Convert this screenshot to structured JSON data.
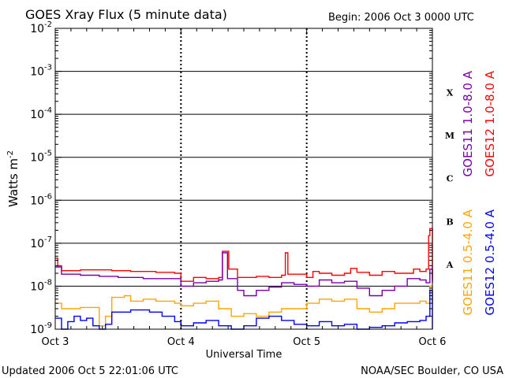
{
  "chart_data": {
    "type": "line",
    "title": "GOES Xray Flux (5 minute data)",
    "begin_label": "Begin:  2006 Oct 3 0000 UTC",
    "xlabel": "Universal Time",
    "ylabel_base": "Watts m",
    "ylabel_exp": "-2",
    "yscale": "log",
    "ylim": [
      1e-09,
      0.01
    ],
    "xlim": [
      0,
      3
    ],
    "grid": true,
    "x_ticks": [
      {
        "value": 0,
        "label": "Oct 3"
      },
      {
        "value": 1,
        "label": "Oct 4"
      },
      {
        "value": 2,
        "label": "Oct 5"
      },
      {
        "value": 3,
        "label": "Oct 6"
      }
    ],
    "y_ticks": [
      {
        "value": 0.01,
        "base": "10",
        "exp": "-2"
      },
      {
        "value": 0.001,
        "base": "10",
        "exp": "-3"
      },
      {
        "value": 0.0001,
        "base": "10",
        "exp": "-4"
      },
      {
        "value": 1e-05,
        "base": "10",
        "exp": "-5"
      },
      {
        "value": 1e-06,
        "base": "10",
        "exp": "-6"
      },
      {
        "value": 1e-07,
        "base": "10",
        "exp": "-7"
      },
      {
        "value": 1e-08,
        "base": "10",
        "exp": "-8"
      },
      {
        "value": 1e-09,
        "base": "10",
        "exp": "-9"
      }
    ],
    "flare_classes": [
      {
        "label": "X",
        "y": 0.00032
      },
      {
        "label": "M",
        "y": 3.2e-05
      },
      {
        "label": "C",
        "y": 3.2e-06
      },
      {
        "label": "B",
        "y": 3.2e-07
      },
      {
        "label": "A",
        "y": 3.2e-08
      }
    ],
    "series": [
      {
        "name": "GOES12 1.0-8.0 A",
        "color": "#ff0000",
        "points": [
          [
            0.0,
            4.5e-08
          ],
          [
            0.02,
            3e-08
          ],
          [
            0.05,
            2.3e-08
          ],
          [
            0.2,
            2.4e-08
          ],
          [
            0.45,
            2.3e-08
          ],
          [
            0.6,
            2.2e-08
          ],
          [
            0.8,
            2.1e-08
          ],
          [
            0.95,
            2e-08
          ],
          [
            1.0,
            1.3e-08
          ],
          [
            1.1,
            1.6e-08
          ],
          [
            1.2,
            1.5e-08
          ],
          [
            1.3,
            1.6e-08
          ],
          [
            1.33,
            6.5e-08
          ],
          [
            1.38,
            2.5e-08
          ],
          [
            1.45,
            1.6e-08
          ],
          [
            1.6,
            1.7e-08
          ],
          [
            1.7,
            1.6e-08
          ],
          [
            1.8,
            1.8e-08
          ],
          [
            1.83,
            6e-08
          ],
          [
            1.85,
            1.9e-08
          ],
          [
            2.0,
            1.6e-08
          ],
          [
            2.05,
            2.2e-08
          ],
          [
            2.1,
            2e-08
          ],
          [
            2.2,
            1.8e-08
          ],
          [
            2.3,
            2e-08
          ],
          [
            2.35,
            2.6e-08
          ],
          [
            2.4,
            2.1e-08
          ],
          [
            2.5,
            1.8e-08
          ],
          [
            2.6,
            2.2e-08
          ],
          [
            2.7,
            2e-08
          ],
          [
            2.8,
            2e-08
          ],
          [
            2.85,
            2.5e-08
          ],
          [
            2.9,
            2.2e-08
          ],
          [
            2.95,
            2.5e-08
          ],
          [
            2.97,
            1.5e-07
          ],
          [
            2.98,
            2.2e-07
          ],
          [
            3.0,
            1.4e-08
          ]
        ]
      },
      {
        "name": "GOES11 1.0-8.0 A",
        "color": "#7700aa",
        "points": [
          [
            0.0,
            2.8e-08
          ],
          [
            0.05,
            1.9e-08
          ],
          [
            0.2,
            1.8e-08
          ],
          [
            0.35,
            1.7e-08
          ],
          [
            0.5,
            1.6e-08
          ],
          [
            0.7,
            1.5e-08
          ],
          [
            0.95,
            1.5e-08
          ],
          [
            1.0,
            1e-08
          ],
          [
            1.1,
            1.2e-08
          ],
          [
            1.2,
            1.3e-08
          ],
          [
            1.3,
            1.4e-08
          ],
          [
            1.33,
            6e-08
          ],
          [
            1.37,
            1.5e-08
          ],
          [
            1.45,
            8e-09
          ],
          [
            1.5,
            6e-09
          ],
          [
            1.6,
            8e-09
          ],
          [
            1.7,
            9.5e-09
          ],
          [
            1.8,
            1.2e-08
          ],
          [
            1.9,
            1.1e-08
          ],
          [
            2.0,
            1e-08
          ],
          [
            2.1,
            1.4e-08
          ],
          [
            2.2,
            1.2e-08
          ],
          [
            2.3,
            1.3e-08
          ],
          [
            2.4,
            9e-09
          ],
          [
            2.5,
            6e-09
          ],
          [
            2.6,
            8e-09
          ],
          [
            2.7,
            1e-08
          ],
          [
            2.8,
            1.5e-08
          ],
          [
            2.9,
            1.4e-08
          ],
          [
            2.95,
            1.2e-08
          ],
          [
            2.98,
            2.5e-08
          ],
          [
            3.0,
            1.2e-08
          ]
        ]
      },
      {
        "name": "GOES11 0.5-4.0 A",
        "color": "#ffa500",
        "points": [
          [
            0.0,
            4e-09
          ],
          [
            0.05,
            3e-09
          ],
          [
            0.2,
            3.2e-09
          ],
          [
            0.35,
            1.2e-09
          ],
          [
            0.4,
            2e-09
          ],
          [
            0.45,
            5.5e-09
          ],
          [
            0.55,
            6e-09
          ],
          [
            0.6,
            4.5e-09
          ],
          [
            0.7,
            5e-09
          ],
          [
            0.8,
            4.5e-09
          ],
          [
            0.95,
            4e-09
          ],
          [
            1.0,
            3.5e-09
          ],
          [
            1.1,
            4e-09
          ],
          [
            1.2,
            4.5e-09
          ],
          [
            1.3,
            3e-09
          ],
          [
            1.4,
            2e-09
          ],
          [
            1.5,
            2.3e-09
          ],
          [
            1.6,
            2e-09
          ],
          [
            1.7,
            2.5e-09
          ],
          [
            1.8,
            3e-09
          ],
          [
            2.0,
            4e-09
          ],
          [
            2.1,
            5e-09
          ],
          [
            2.2,
            4.5e-09
          ],
          [
            2.3,
            5e-09
          ],
          [
            2.4,
            3e-09
          ],
          [
            2.5,
            2.5e-09
          ],
          [
            2.6,
            3e-09
          ],
          [
            2.7,
            4e-09
          ],
          [
            2.8,
            4e-09
          ],
          [
            2.9,
            4.5e-09
          ],
          [
            2.95,
            4e-09
          ],
          [
            2.98,
            1e-08
          ],
          [
            3.0,
            4e-09
          ]
        ]
      },
      {
        "name": "GOES12 0.5-4.0 A",
        "color": "#0000ff",
        "points": [
          [
            0.0,
            1.8e-09
          ],
          [
            0.05,
            1e-09
          ],
          [
            0.1,
            1.5e-09
          ],
          [
            0.15,
            2e-09
          ],
          [
            0.2,
            1.6e-09
          ],
          [
            0.25,
            1.8e-09
          ],
          [
            0.3,
            1.2e-09
          ],
          [
            0.35,
            1e-09
          ],
          [
            0.4,
            1.3e-09
          ],
          [
            0.45,
            2.5e-09
          ],
          [
            0.6,
            2.8e-09
          ],
          [
            0.75,
            2.5e-09
          ],
          [
            0.85,
            2e-09
          ],
          [
            0.95,
            1.5e-09
          ],
          [
            1.0,
            1.2e-09
          ],
          [
            1.1,
            1.4e-09
          ],
          [
            1.2,
            1.6e-09
          ],
          [
            1.3,
            1.2e-09
          ],
          [
            1.4,
            1e-09
          ],
          [
            1.5,
            1.2e-09
          ],
          [
            1.6,
            1.8e-09
          ],
          [
            1.7,
            2e-09
          ],
          [
            1.8,
            1.6e-09
          ],
          [
            1.9,
            1.3e-09
          ],
          [
            2.0,
            1.2e-09
          ],
          [
            2.1,
            1.5e-09
          ],
          [
            2.2,
            1.2e-09
          ],
          [
            2.3,
            1.3e-09
          ],
          [
            2.4,
            1e-09
          ],
          [
            2.5,
            1.1e-09
          ],
          [
            2.6,
            1.2e-09
          ],
          [
            2.7,
            1.4e-09
          ],
          [
            2.8,
            1.5e-09
          ],
          [
            2.9,
            1.6e-09
          ],
          [
            2.95,
            2e-09
          ],
          [
            2.98,
            8e-09
          ],
          [
            3.0,
            1e-09
          ]
        ]
      }
    ]
  },
  "footer": {
    "updated": "Updated 2006 Oct  5 22:01:06 UTC",
    "source": "NOAA/SEC Boulder, CO USA"
  }
}
